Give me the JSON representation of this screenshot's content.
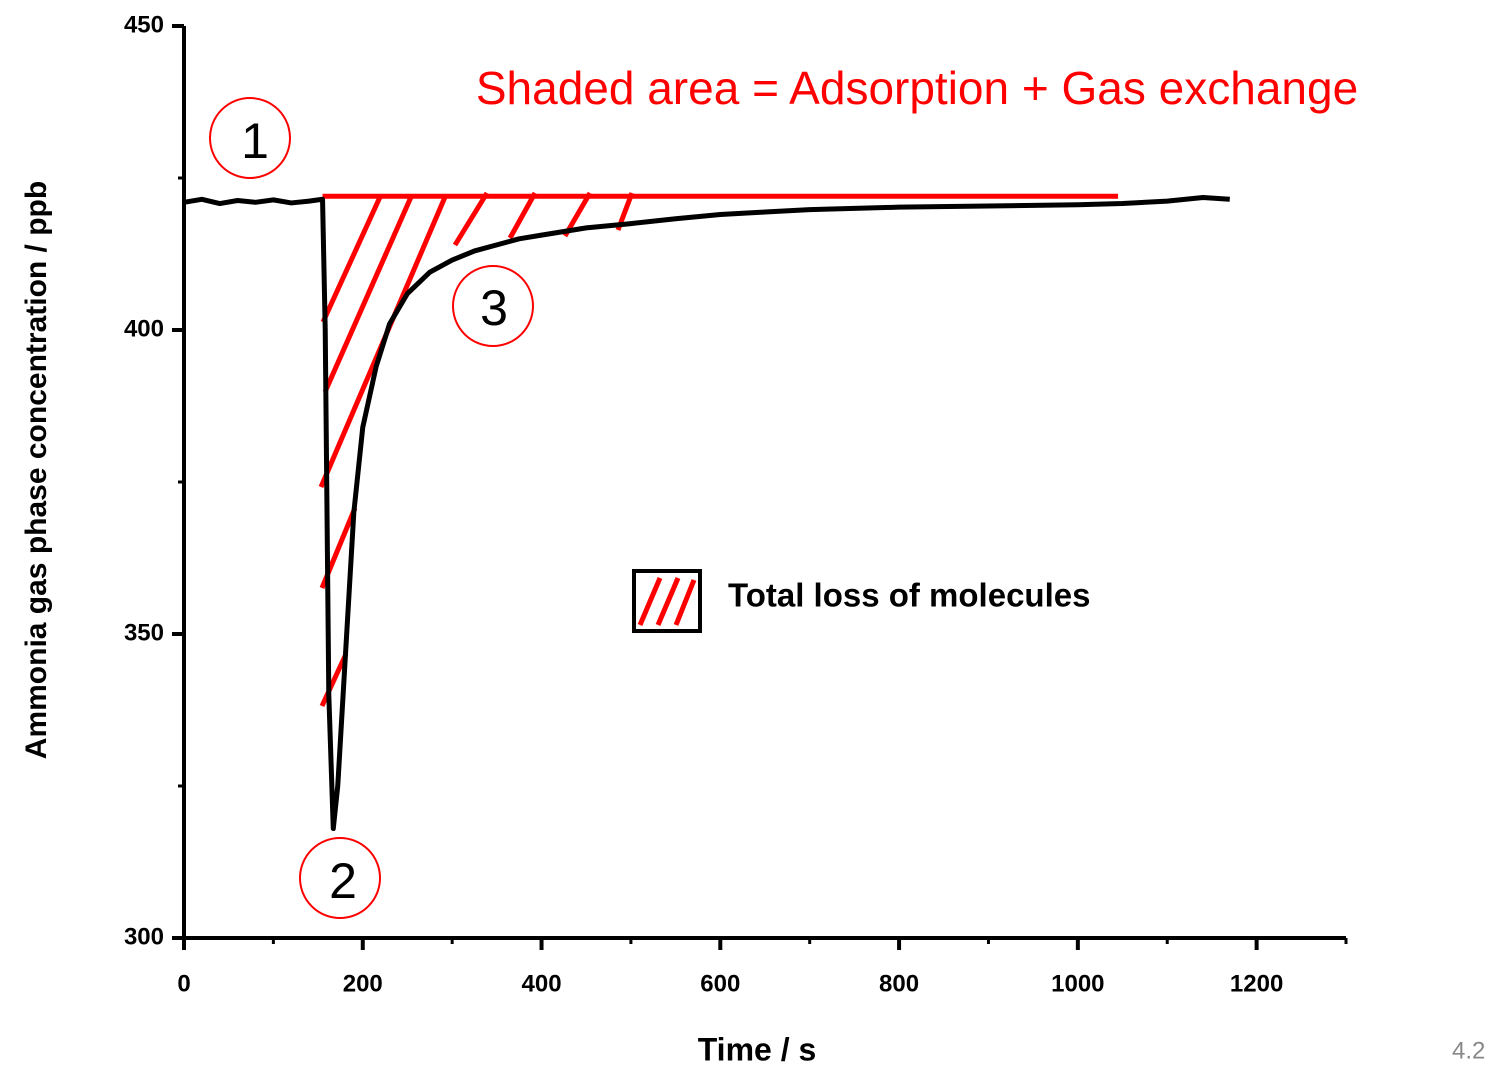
{
  "chart_data": {
    "type": "line",
    "xlabel": "Time / s",
    "ylabel": "Ammonia gas phase concentration / ppb",
    "x": [
      0,
      20,
      40,
      60,
      80,
      100,
      120,
      140,
      155,
      158,
      162,
      167,
      172,
      180,
      190,
      200,
      215,
      230,
      250,
      275,
      300,
      325,
      350,
      375,
      400,
      450,
      500,
      550,
      600,
      650,
      700,
      800,
      900,
      1000,
      1050,
      1100,
      1140,
      1170
    ],
    "series": [
      {
        "color": "#000000",
        "values": [
          421,
          421.5,
          420.8,
          421.3,
          421,
          421.4,
          420.9,
          421.2,
          421.5,
          400,
          340,
          318,
          325,
          345,
          370,
          384,
          394,
          401,
          406,
          409.5,
          411.5,
          413,
          414,
          415,
          415.6,
          416.8,
          417.5,
          418.3,
          419,
          419.4,
          419.8,
          420.2,
          420.4,
          420.6,
          420.8,
          421.2,
          421.8,
          421.5
        ]
      }
    ],
    "reference_line": {
      "y": 422,
      "x": [
        155,
        1045
      ],
      "color": "#ff0000"
    },
    "xlim": [
      0,
      1300
    ],
    "xticks": [
      0,
      200,
      400,
      600,
      800,
      1000,
      1200
    ],
    "xminorticks": [
      100,
      300,
      500,
      700,
      900,
      1100,
      1300
    ],
    "ylim": [
      300,
      450
    ],
    "yticks": [
      300,
      350,
      400,
      450
    ],
    "yminorticks": [
      325,
      375,
      425
    ],
    "annotations": [
      "Shaded area = Adsorption + Gas exchange",
      "1",
      "2",
      "3"
    ],
    "legend": "Total loss of molecules",
    "page_number": "4.2"
  }
}
